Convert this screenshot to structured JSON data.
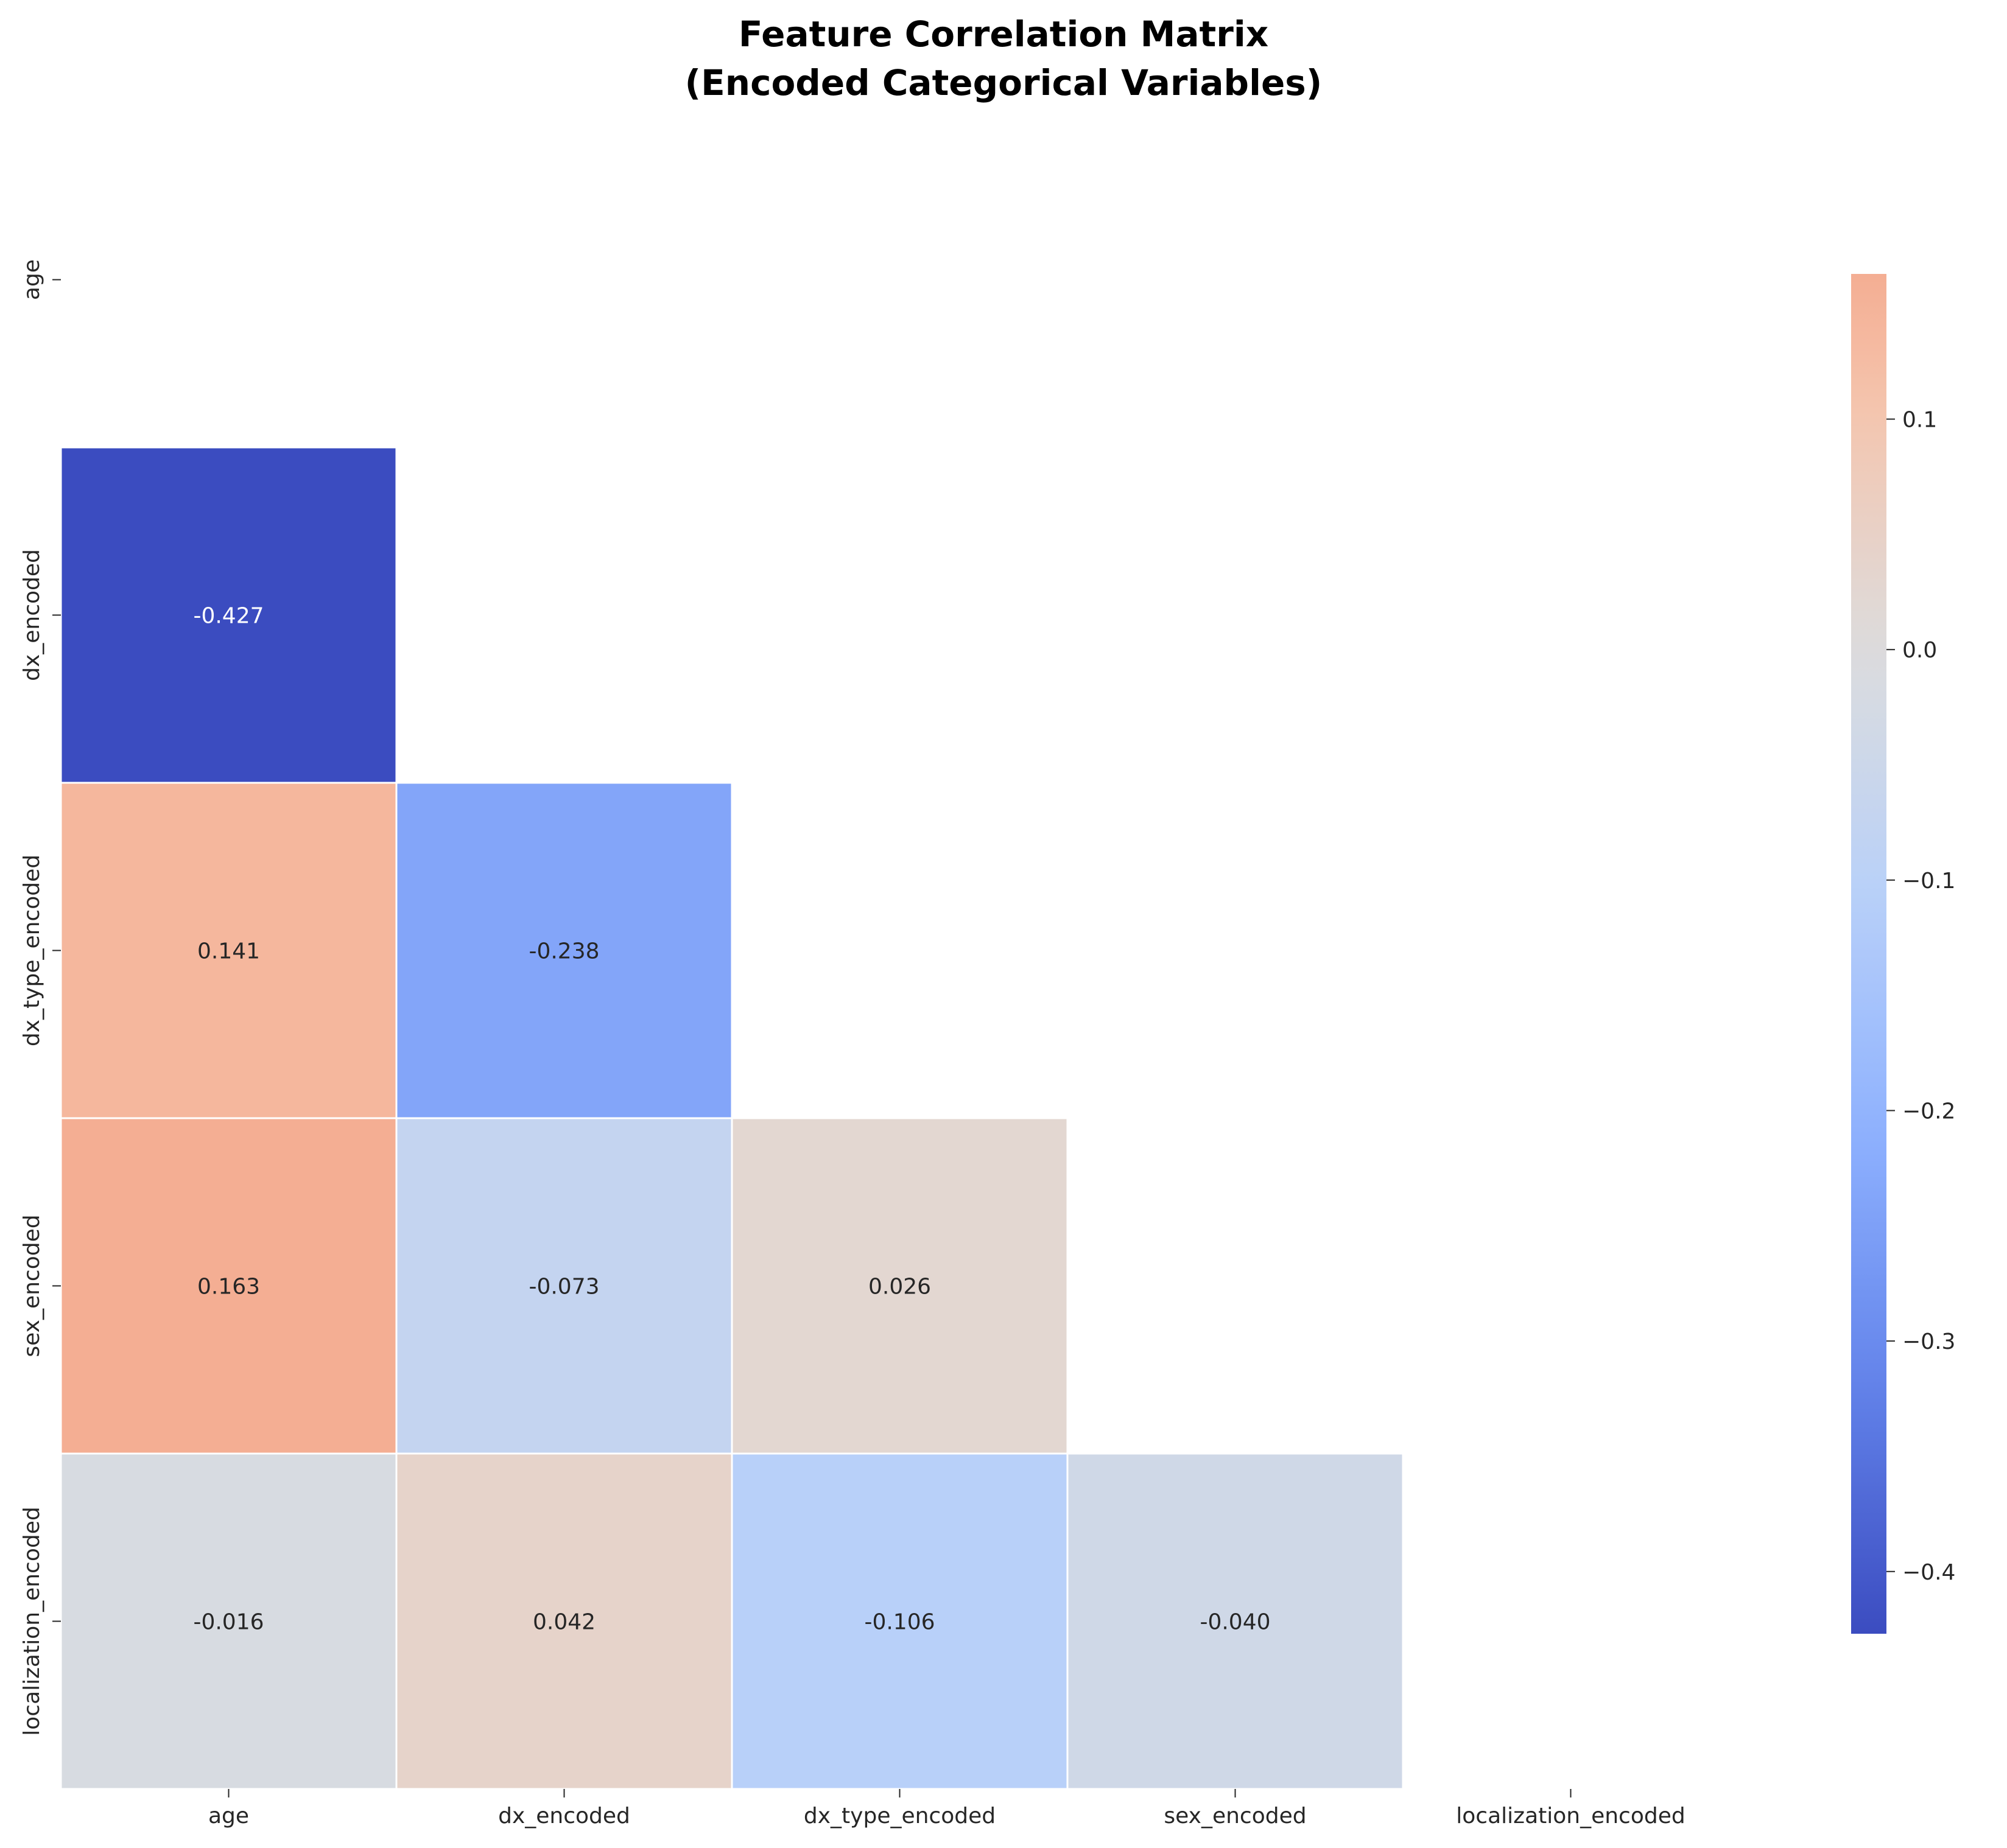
{
  "chart_data": {
    "type": "heatmap",
    "title": "Feature Correlation Matrix",
    "subtitle": "(Encoded Categorical Variables)",
    "variables": [
      "age",
      "dx_encoded",
      "dx_type_encoded",
      "sex_encoded",
      "localization_encoded"
    ],
    "mask": "upper-triangle-including-diagonal",
    "cells": [
      {
        "row": "dx_encoded",
        "col": "age",
        "value": -0.427,
        "label": "-0.427"
      },
      {
        "row": "dx_type_encoded",
        "col": "age",
        "value": 0.141,
        "label": "0.141"
      },
      {
        "row": "dx_type_encoded",
        "col": "dx_encoded",
        "value": -0.238,
        "label": "-0.238"
      },
      {
        "row": "sex_encoded",
        "col": "age",
        "value": 0.163,
        "label": "0.163"
      },
      {
        "row": "sex_encoded",
        "col": "dx_encoded",
        "value": -0.073,
        "label": "-0.073"
      },
      {
        "row": "sex_encoded",
        "col": "dx_type_encoded",
        "value": 0.026,
        "label": "0.026"
      },
      {
        "row": "localization_encoded",
        "col": "age",
        "value": -0.016,
        "label": "-0.016"
      },
      {
        "row": "localization_encoded",
        "col": "dx_encoded",
        "value": 0.042,
        "label": "0.042"
      },
      {
        "row": "localization_encoded",
        "col": "dx_type_encoded",
        "value": -0.106,
        "label": "-0.106"
      },
      {
        "row": "localization_encoded",
        "col": "sex_encoded",
        "value": -0.04,
        "label": "-0.040"
      }
    ],
    "colormap": "coolwarm",
    "colorbar": {
      "vmin": -0.427,
      "vmax": 0.163,
      "ticks": [
        0.1,
        0.0,
        -0.1,
        -0.2,
        -0.3,
        -0.4
      ],
      "tick_labels": [
        "0.1",
        "0.0",
        "−0.1",
        "−0.2",
        "−0.3",
        "−0.4"
      ],
      "placement": "right"
    }
  }
}
